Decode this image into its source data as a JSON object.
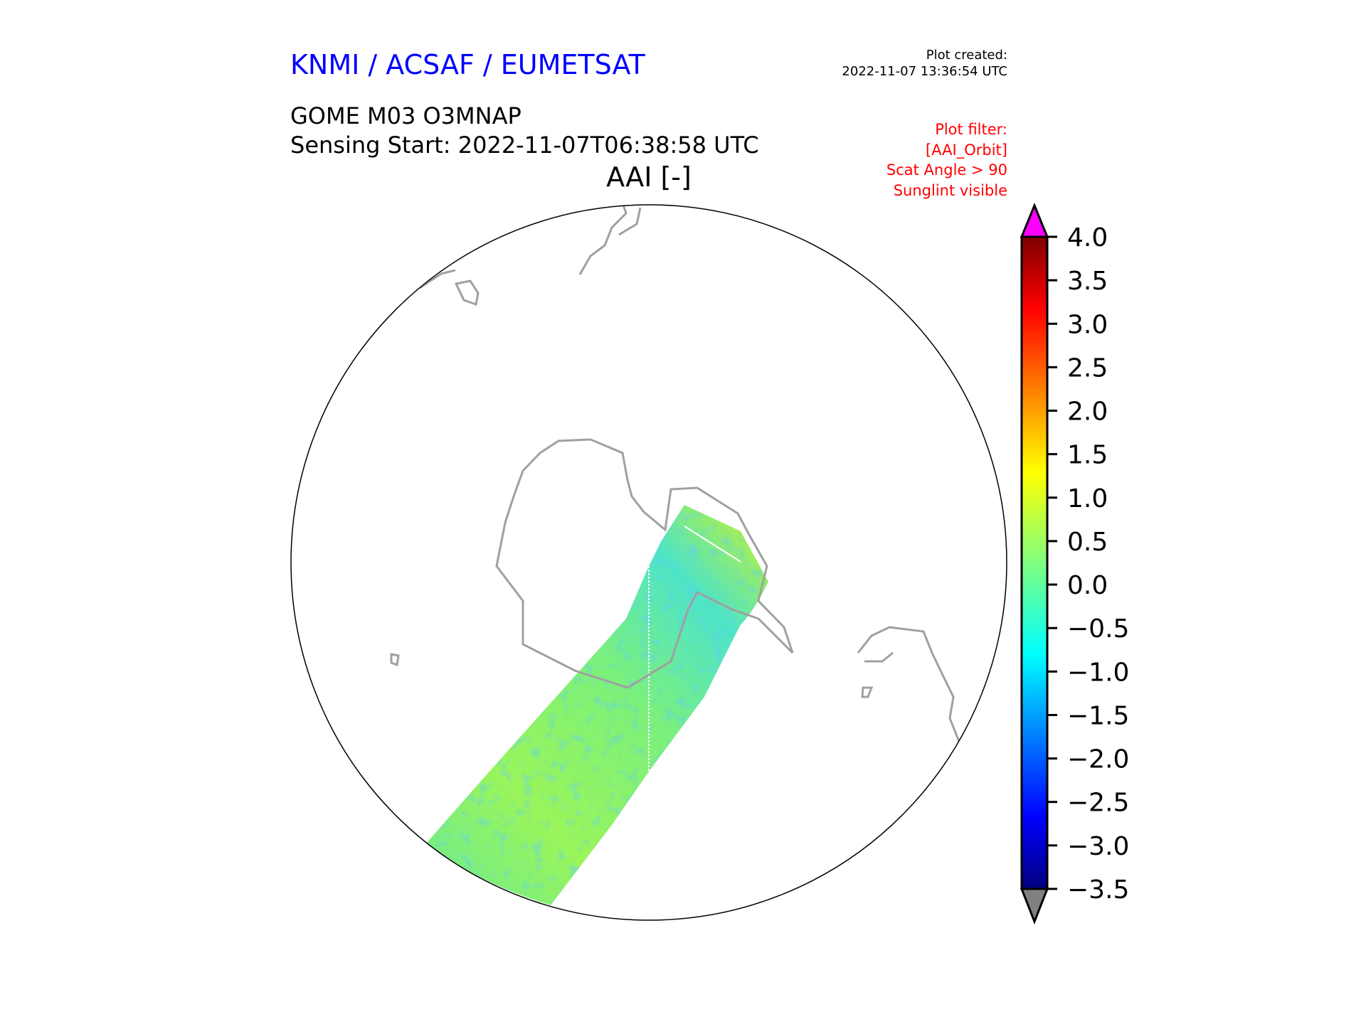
{
  "header": {
    "organization": "KNMI / ACSAF / EUMETSAT",
    "plot_created_label": "Plot created:",
    "plot_created_time": "2022-11-07 13:36:54 UTC",
    "product": "GOME M03 O3MNAP",
    "sensing_start": "Sensing Start: 2022-11-07T06:38:58 UTC",
    "variable_title": "AAI [-]"
  },
  "filter": {
    "lines": [
      "Plot filter:",
      "[AAI_Orbit]",
      "Scat Angle > 90",
      "Sunglint visible"
    ]
  },
  "colors": {
    "org_title": "#0000ff",
    "filter_text": "#ff0000",
    "over_color": "#ff00ff",
    "under_color": "#808080",
    "coastline": "#a0a0a0"
  },
  "chart_data": {
    "type": "heatmap",
    "projection": "south polar stereographic",
    "title": "AAI [-]",
    "colorbar": {
      "min": -3.5,
      "max": 4.0,
      "ticks": [
        "4.0",
        "3.5",
        "3.0",
        "2.5",
        "2.0",
        "1.5",
        "1.0",
        "0.5",
        "0.0",
        "−0.5",
        "−1.0",
        "−1.5",
        "−2.0",
        "−2.5",
        "−3.0",
        "−3.5"
      ],
      "tick_values": [
        4.0,
        3.5,
        3.0,
        2.5,
        2.0,
        1.5,
        1.0,
        0.5,
        0.0,
        -0.5,
        -1.0,
        -1.5,
        -2.0,
        -2.5,
        -3.0,
        -3.5
      ],
      "colormap": "jet",
      "extend": "both"
    },
    "swath_typical_range": [
      -1.5,
      1.5
    ]
  }
}
